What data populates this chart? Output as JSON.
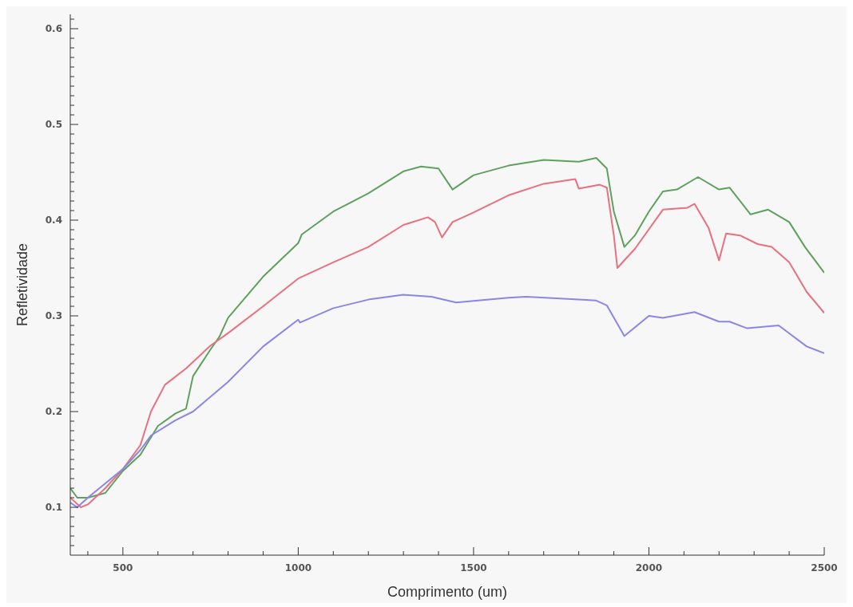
{
  "chart_data": {
    "type": "line",
    "xlabel": "Comprimento (um)",
    "ylabel": "Refletividade",
    "xlim": [
      350,
      2500
    ],
    "ylim": [
      0.05,
      0.615
    ],
    "xticks": [
      {
        "value": 400,
        "label": null
      },
      500,
      {
        "value": 600,
        "label": null
      },
      {
        "value": 700,
        "label": null
      },
      {
        "value": 800,
        "label": null
      },
      {
        "value": 900,
        "label": null
      },
      1000,
      {
        "value": 1100,
        "label": null
      },
      {
        "value": 1200,
        "label": null
      },
      {
        "value": 1300,
        "label": null
      },
      {
        "value": 1400,
        "label": null
      },
      1500,
      {
        "value": 1600,
        "label": null
      },
      {
        "value": 1700,
        "label": null
      },
      {
        "value": 1800,
        "label": null
      },
      {
        "value": 1900,
        "label": null
      },
      2000,
      {
        "value": 2100,
        "label": null
      },
      {
        "value": 2200,
        "label": null
      },
      {
        "value": 2300,
        "label": null
      },
      {
        "value": 2400,
        "label": null
      },
      2500
    ],
    "yticks": [
      {
        "value": 0.06,
        "label": null
      },
      {
        "value": 0.07,
        "label": null
      },
      {
        "value": 0.08,
        "label": null
      },
      {
        "value": 0.09,
        "label": null
      },
      0.1,
      {
        "value": 0.11,
        "label": null
      },
      {
        "value": 0.12,
        "label": null
      },
      {
        "value": 0.13,
        "label": null
      },
      {
        "value": 0.14,
        "label": null
      },
      {
        "value": 0.15,
        "label": null
      },
      {
        "value": 0.16,
        "label": null
      },
      {
        "value": 0.17,
        "label": null
      },
      {
        "value": 0.18,
        "label": null
      },
      {
        "value": 0.19,
        "label": null
      },
      0.2,
      {
        "value": 0.21,
        "label": null
      },
      {
        "value": 0.22,
        "label": null
      },
      {
        "value": 0.23,
        "label": null
      },
      {
        "value": 0.24,
        "label": null
      },
      {
        "value": 0.25,
        "label": null
      },
      {
        "value": 0.26,
        "label": null
      },
      {
        "value": 0.27,
        "label": null
      },
      {
        "value": 0.28,
        "label": null
      },
      {
        "value": 0.29,
        "label": null
      },
      0.3,
      {
        "value": 0.31,
        "label": null
      },
      {
        "value": 0.32,
        "label": null
      },
      {
        "value": 0.33,
        "label": null
      },
      {
        "value": 0.34,
        "label": null
      },
      {
        "value": 0.35,
        "label": null
      },
      {
        "value": 0.36,
        "label": null
      },
      {
        "value": 0.37,
        "label": null
      },
      {
        "value": 0.38,
        "label": null
      },
      {
        "value": 0.39,
        "label": null
      },
      0.4,
      {
        "value": 0.41,
        "label": null
      },
      {
        "value": 0.42,
        "label": null
      },
      {
        "value": 0.43,
        "label": null
      },
      {
        "value": 0.44,
        "label": null
      },
      {
        "value": 0.45,
        "label": null
      },
      {
        "value": 0.46,
        "label": null
      },
      {
        "value": 0.47,
        "label": null
      },
      {
        "value": 0.48,
        "label": null
      },
      {
        "value": 0.49,
        "label": null
      },
      0.5,
      {
        "value": 0.51,
        "label": null
      },
      {
        "value": 0.52,
        "label": null
      },
      {
        "value": 0.53,
        "label": null
      },
      {
        "value": 0.54,
        "label": null
      },
      {
        "value": 0.55,
        "label": null
      },
      {
        "value": 0.56,
        "label": null
      },
      {
        "value": 0.57,
        "label": null
      },
      {
        "value": 0.58,
        "label": null
      },
      {
        "value": 0.59,
        "label": null
      },
      0.6,
      {
        "value": 0.61,
        "label": null
      }
    ],
    "grid": false,
    "legend": false,
    "marker": "none",
    "line_style": "solid",
    "series": [
      {
        "color": "#5fa05f",
        "x": [
          350,
          370,
          400,
          450,
          500,
          550,
          600,
          650,
          680,
          700,
          750,
          775,
          800,
          900,
          1000,
          1010,
          1100,
          1200,
          1300,
          1350,
          1400,
          1440,
          1500,
          1600,
          1700,
          1800,
          1850,
          1880,
          1900,
          1930,
          1960,
          2000,
          2040,
          2080,
          2140,
          2200,
          2230,
          2290,
          2340,
          2400,
          2445,
          2500
        ],
        "values": [
          0.12,
          0.11,
          0.11,
          0.115,
          0.138,
          0.155,
          0.185,
          0.198,
          0.203,
          0.237,
          0.265,
          0.278,
          0.298,
          0.341,
          0.376,
          0.385,
          0.409,
          0.428,
          0.451,
          0.456,
          0.454,
          0.432,
          0.447,
          0.457,
          0.463,
          0.461,
          0.465,
          0.454,
          0.409,
          0.372,
          0.384,
          0.409,
          0.43,
          0.432,
          0.445,
          0.432,
          0.434,
          0.406,
          0.411,
          0.398,
          0.372,
          0.345
        ]
      },
      {
        "color": "#e8707f",
        "x": [
          350,
          380,
          400,
          450,
          500,
          550,
          580,
          620,
          680,
          750,
          800,
          900,
          1000,
          1100,
          1200,
          1300,
          1370,
          1390,
          1410,
          1440,
          1500,
          1600,
          1700,
          1790,
          1800,
          1860,
          1880,
          1900,
          1910,
          1960,
          2040,
          2110,
          2130,
          2170,
          2200,
          2220,
          2260,
          2310,
          2350,
          2400,
          2450,
          2500
        ],
        "values": [
          0.11,
          0.1,
          0.103,
          0.12,
          0.14,
          0.165,
          0.2,
          0.228,
          0.245,
          0.269,
          0.282,
          0.31,
          0.339,
          0.356,
          0.372,
          0.395,
          0.403,
          0.398,
          0.382,
          0.398,
          0.408,
          0.426,
          0.438,
          0.443,
          0.433,
          0.437,
          0.434,
          0.384,
          0.35,
          0.37,
          0.411,
          0.413,
          0.417,
          0.392,
          0.358,
          0.386,
          0.384,
          0.375,
          0.372,
          0.356,
          0.325,
          0.303
        ]
      },
      {
        "color": "#8a86e6",
        "x": [
          350,
          370,
          400,
          450,
          500,
          550,
          580,
          650,
          700,
          800,
          900,
          1000,
          1005,
          1100,
          1200,
          1300,
          1380,
          1450,
          1600,
          1650,
          1800,
          1850,
          1880,
          1930,
          2000,
          2040,
          2130,
          2200,
          2230,
          2280,
          2370,
          2450,
          2500
        ],
        "values": [
          0.105,
          0.1,
          0.11,
          0.125,
          0.14,
          0.16,
          0.175,
          0.191,
          0.2,
          0.231,
          0.268,
          0.296,
          0.293,
          0.308,
          0.317,
          0.322,
          0.32,
          0.314,
          0.319,
          0.32,
          0.317,
          0.316,
          0.311,
          0.279,
          0.3,
          0.298,
          0.304,
          0.294,
          0.294,
          0.287,
          0.29,
          0.268,
          0.261
        ]
      }
    ]
  }
}
